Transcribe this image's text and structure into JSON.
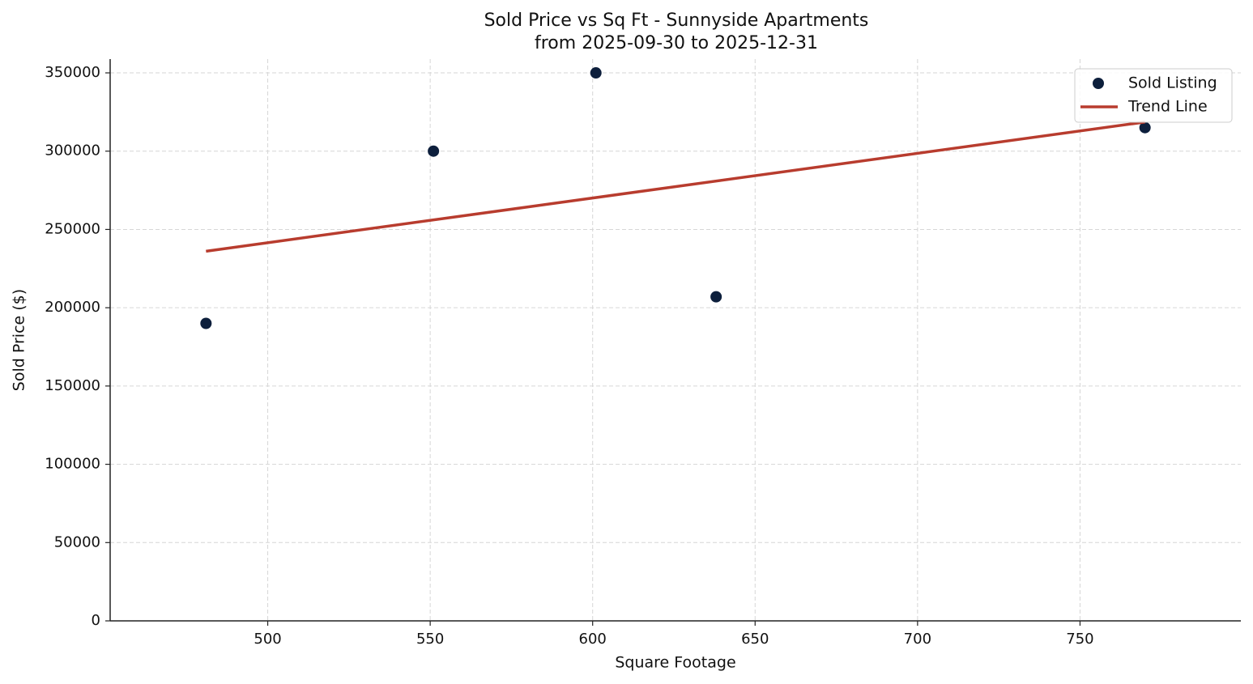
{
  "chart_data": {
    "type": "scatter",
    "title": "Sold Price vs Sq Ft - Sunnyside Apartments",
    "subtitle": "from 2025-09-30 to 2025-12-31",
    "x_label": "Square Footage",
    "y_label": "Sold Price ($)",
    "xlim": [
      451.5,
      799.5
    ],
    "ylim": [
      0,
      358800
    ],
    "xticks": [
      500,
      550,
      600,
      650,
      700,
      750
    ],
    "yticks": [
      0,
      50000,
      100000,
      150000,
      200000,
      250000,
      300000,
      350000
    ],
    "grid": true,
    "legend": "upper right",
    "series": [
      {
        "name": "Sold Listing",
        "type": "scatter",
        "color": "#0d1f3c",
        "x": [
          481,
          551,
          601,
          638,
          770
        ],
        "values": [
          190000,
          300000,
          350000,
          207000,
          315000
        ]
      },
      {
        "name": "Trend Line",
        "type": "line",
        "color": "#b83c2e",
        "x": [
          481,
          770
        ],
        "values": [
          236100,
          318600
        ]
      }
    ]
  }
}
